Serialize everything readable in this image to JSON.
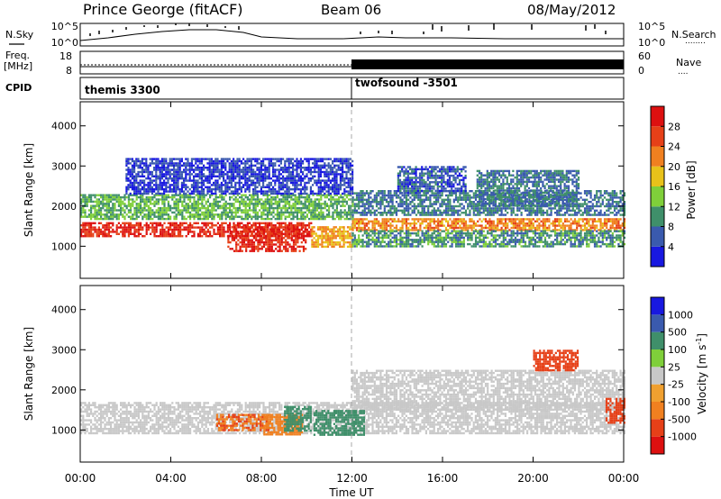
{
  "header": {
    "station": "Prince George (fitACF)",
    "beam": "Beam 06",
    "date": "08/May/2012"
  },
  "nsky_panel": {
    "left_label": "N.Sky",
    "right_label": "N.Search",
    "right_label_dots": "........",
    "left_ticks": [
      "10^5",
      "10^0"
    ],
    "right_ticks": [
      "10^5",
      "10^0"
    ]
  },
  "freq_panel": {
    "left_label_top": "Freq.",
    "left_label_unit": "[MHz]",
    "right_label": "Nave",
    "right_label_dots": "....",
    "left_ticks": [
      "18",
      "8"
    ],
    "right_ticks": [
      "60",
      "0"
    ]
  },
  "cpid_panel": {
    "label": "CPID",
    "segments": [
      {
        "name": "themis 3300",
        "start_hour": 0
      },
      {
        "name": "twofsound -3501",
        "start_hour": 12
      }
    ]
  },
  "time_axis": {
    "title": "Time UT",
    "ticks": [
      "00:00",
      "04:00",
      "08:00",
      "12:00",
      "16:00",
      "20:00",
      "00:00"
    ],
    "tick_hours": [
      0,
      4,
      8,
      12,
      16,
      20,
      24
    ],
    "range_hours": [
      0,
      24
    ]
  },
  "chart_data": [
    {
      "type": "heatmap",
      "panel": "power",
      "ylabel": "Slant Range [km]",
      "ylim": [
        200,
        4600
      ],
      "yticks": [
        "1000",
        "2000",
        "3000",
        "4000"
      ],
      "ytick_values": [
        1000,
        2000,
        3000,
        4000
      ],
      "xlim": [
        0,
        24
      ],
      "colorbar": {
        "label": "Power [dB]",
        "ticks": [
          "4",
          "8",
          "12",
          "16",
          "20",
          "24",
          "28"
        ],
        "tick_values": [
          4,
          8,
          12,
          16,
          20,
          24,
          28
        ],
        "range": [
          0,
          32
        ],
        "colors": [
          "#1818e0",
          "#3a5aae",
          "#3f8f6a",
          "#7fcf3a",
          "#e8c21a",
          "#f08020",
          "#e64018",
          "#dd1010"
        ]
      },
      "regions": [
        {
          "t": [
            0,
            10.2
          ],
          "r": [
            1250,
            1600
          ],
          "value": 28
        },
        {
          "t": [
            6.5,
            10
          ],
          "r": [
            900,
            1500
          ],
          "value": 28
        },
        {
          "t": [
            10.2,
            12
          ],
          "r": [
            1000,
            1500
          ],
          "value": 20
        },
        {
          "t": [
            12,
            24
          ],
          "r": [
            1400,
            1700
          ],
          "value": 22
        },
        {
          "t": [
            0,
            12
          ],
          "r": [
            1700,
            2300
          ],
          "value": 12
        },
        {
          "t": [
            12,
            24
          ],
          "r": [
            1000,
            1400
          ],
          "value": 10
        },
        {
          "t": [
            12,
            24
          ],
          "r": [
            1800,
            2400
          ],
          "value": 8
        },
        {
          "t": [
            14,
            17
          ],
          "r": [
            2300,
            3000
          ],
          "value": 6
        },
        {
          "t": [
            17.5,
            22
          ],
          "r": [
            2000,
            2900
          ],
          "value": 8
        },
        {
          "t": [
            2,
            12
          ],
          "r": [
            2300,
            3200
          ],
          "value": 4
        }
      ]
    },
    {
      "type": "heatmap",
      "panel": "velocity",
      "ylabel": "Slant Range [km]",
      "ylim": [
        200,
        4600
      ],
      "yticks": [
        "1000",
        "2000",
        "3000",
        "4000"
      ],
      "ytick_values": [
        1000,
        2000,
        3000,
        4000
      ],
      "xlim": [
        0,
        24
      ],
      "colorbar": {
        "label": "Velocity [m s",
        "label_superscript": "-1",
        "label_close": "]",
        "ticks": [
          "-1000",
          "-500",
          "-100",
          "-25",
          "25",
          "100",
          "500",
          "1000"
        ],
        "colors": [
          "#dd1010",
          "#e64018",
          "#f08020",
          "#f0a030",
          "#c8c8c8",
          "#7fcf3a",
          "#3f8f6a",
          "#3a5aae",
          "#1818e0"
        ]
      },
      "regions": [
        {
          "t": [
            0,
            24
          ],
          "r": [
            900,
            1700
          ],
          "value": 0
        },
        {
          "t": [
            12,
            24
          ],
          "r": [
            1500,
            2500
          ],
          "value": 0
        },
        {
          "t": [
            6,
            8.3
          ],
          "r": [
            1000,
            1400
          ],
          "value": -500
        },
        {
          "t": [
            8,
            9.8
          ],
          "r": [
            900,
            1400
          ],
          "value": -400
        },
        {
          "t": [
            9,
            10.2
          ],
          "r": [
            1000,
            1600
          ],
          "value": 300
        },
        {
          "t": [
            10.3,
            12.5
          ],
          "r": [
            900,
            1500
          ],
          "value": 200
        },
        {
          "t": [
            20,
            22
          ],
          "r": [
            2500,
            3000
          ],
          "value": -600
        },
        {
          "t": [
            23.2,
            24
          ],
          "r": [
            1200,
            1800
          ],
          "value": -900
        }
      ]
    }
  ]
}
